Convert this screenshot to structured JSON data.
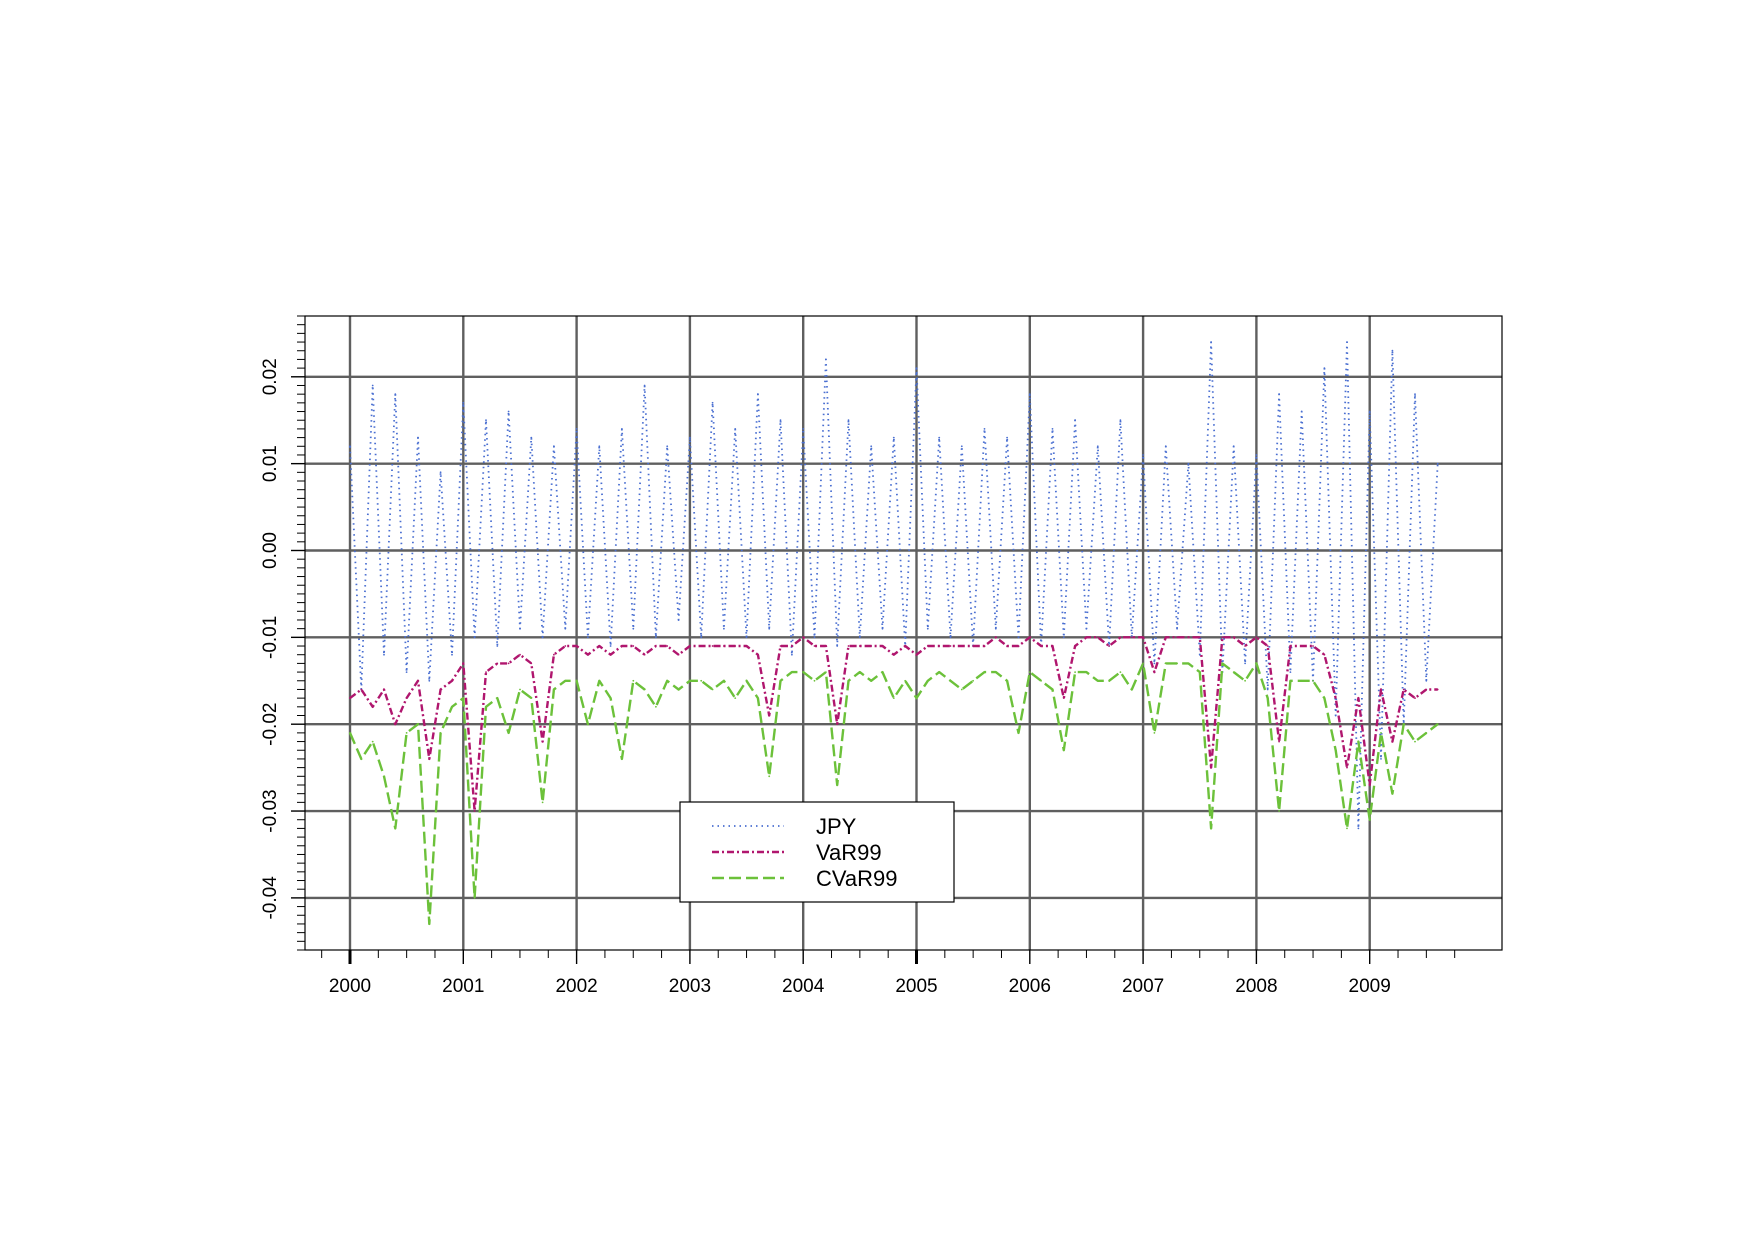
{
  "chart_data": {
    "type": "line",
    "title": "",
    "xlabel": "",
    "ylabel": "",
    "xlim": [
      2000,
      2009.95
    ],
    "ylim": [
      -0.046,
      0.027
    ],
    "grid": true,
    "legend_placement": "bottom-center",
    "x_ticks": [
      "2000",
      "2001",
      "2002",
      "2003",
      "2004",
      "2005",
      "2006",
      "2007",
      "2008",
      "2009"
    ],
    "y_ticks": [
      "0.02",
      "0.01",
      "0.00",
      "-0.01",
      "-0.02",
      "-0.03",
      "-0.04"
    ],
    "y_tick_values": [
      0.02,
      0.01,
      0.0,
      -0.01,
      -0.02,
      -0.03,
      -0.04
    ],
    "series": [
      {
        "name": "JPY",
        "color": "#4a6fd1",
        "style": "dotted",
        "x": [
          2000.0,
          2000.1,
          2000.2,
          2000.3,
          2000.4,
          2000.5,
          2000.6,
          2000.7,
          2000.8,
          2000.9,
          2001.0,
          2001.1,
          2001.2,
          2001.3,
          2001.4,
          2001.5,
          2001.6,
          2001.7,
          2001.8,
          2001.9,
          2002.0,
          2002.1,
          2002.2,
          2002.3,
          2002.4,
          2002.5,
          2002.6,
          2002.7,
          2002.8,
          2002.9,
          2003.0,
          2003.1,
          2003.2,
          2003.3,
          2003.4,
          2003.5,
          2003.6,
          2003.7,
          2003.8,
          2003.9,
          2004.0,
          2004.1,
          2004.2,
          2004.3,
          2004.4,
          2004.5,
          2004.6,
          2004.7,
          2004.8,
          2004.9,
          2005.0,
          2005.1,
          2005.2,
          2005.3,
          2005.4,
          2005.5,
          2005.6,
          2005.7,
          2005.8,
          2005.9,
          2006.0,
          2006.1,
          2006.2,
          2006.3,
          2006.4,
          2006.5,
          2006.6,
          2006.7,
          2006.8,
          2006.9,
          2007.0,
          2007.1,
          2007.2,
          2007.3,
          2007.4,
          2007.5,
          2007.6,
          2007.7,
          2007.8,
          2007.9,
          2008.0,
          2008.1,
          2008.2,
          2008.3,
          2008.4,
          2008.5,
          2008.6,
          2008.7,
          2008.8,
          2008.9,
          2009.0,
          2009.1,
          2009.2,
          2009.3,
          2009.4,
          2009.5,
          2009.6
        ],
        "values": [
          0.012,
          -0.016,
          0.019,
          -0.012,
          0.018,
          -0.014,
          0.013,
          -0.015,
          0.009,
          -0.012,
          0.017,
          -0.01,
          0.015,
          -0.011,
          0.016,
          -0.009,
          0.013,
          -0.01,
          0.012,
          -0.009,
          0.014,
          -0.01,
          0.012,
          -0.011,
          0.014,
          -0.009,
          0.019,
          -0.01,
          0.012,
          -0.008,
          0.013,
          -0.01,
          0.017,
          -0.009,
          0.014,
          -0.01,
          0.018,
          -0.009,
          0.015,
          -0.012,
          0.014,
          -0.01,
          0.022,
          -0.011,
          0.015,
          -0.01,
          0.012,
          -0.009,
          0.013,
          -0.011,
          0.021,
          -0.009,
          0.013,
          -0.01,
          0.012,
          -0.011,
          0.014,
          -0.009,
          0.013,
          -0.01,
          0.018,
          -0.011,
          0.014,
          -0.01,
          0.015,
          -0.009,
          0.012,
          -0.011,
          0.015,
          -0.01,
          0.011,
          -0.013,
          0.012,
          -0.009,
          0.01,
          -0.012,
          0.024,
          -0.014,
          0.012,
          -0.013,
          0.011,
          -0.016,
          0.018,
          -0.014,
          0.016,
          -0.015,
          0.021,
          -0.019,
          0.024,
          -0.032,
          0.016,
          -0.024,
          0.023,
          -0.02,
          0.018,
          -0.015,
          0.01
        ]
      },
      {
        "name": "VaR99",
        "color": "#b0166e",
        "style": "dashdot",
        "x": [
          2000.0,
          2000.1,
          2000.2,
          2000.3,
          2000.4,
          2000.5,
          2000.6,
          2000.7,
          2000.8,
          2000.9,
          2001.0,
          2001.1,
          2001.2,
          2001.3,
          2001.4,
          2001.5,
          2001.6,
          2001.7,
          2001.8,
          2001.9,
          2002.0,
          2002.1,
          2002.2,
          2002.3,
          2002.4,
          2002.5,
          2002.6,
          2002.7,
          2002.8,
          2002.9,
          2003.0,
          2003.1,
          2003.2,
          2003.3,
          2003.4,
          2003.5,
          2003.6,
          2003.7,
          2003.8,
          2003.9,
          2004.0,
          2004.1,
          2004.2,
          2004.3,
          2004.4,
          2004.5,
          2004.6,
          2004.7,
          2004.8,
          2004.9,
          2005.0,
          2005.1,
          2005.2,
          2005.3,
          2005.4,
          2005.5,
          2005.6,
          2005.7,
          2005.8,
          2005.9,
          2006.0,
          2006.1,
          2006.2,
          2006.3,
          2006.4,
          2006.5,
          2006.6,
          2006.7,
          2006.8,
          2006.9,
          2007.0,
          2007.1,
          2007.2,
          2007.3,
          2007.4,
          2007.5,
          2007.6,
          2007.7,
          2007.8,
          2007.9,
          2008.0,
          2008.1,
          2008.2,
          2008.3,
          2008.4,
          2008.5,
          2008.6,
          2008.7,
          2008.8,
          2008.9,
          2009.0,
          2009.1,
          2009.2,
          2009.3,
          2009.4,
          2009.5,
          2009.6
        ],
        "values": [
          -0.017,
          -0.016,
          -0.018,
          -0.016,
          -0.02,
          -0.017,
          -0.015,
          -0.024,
          -0.016,
          -0.015,
          -0.013,
          -0.03,
          -0.014,
          -0.013,
          -0.013,
          -0.012,
          -0.013,
          -0.022,
          -0.012,
          -0.011,
          -0.011,
          -0.012,
          -0.011,
          -0.012,
          -0.011,
          -0.011,
          -0.012,
          -0.011,
          -0.011,
          -0.012,
          -0.011,
          -0.011,
          -0.011,
          -0.011,
          -0.011,
          -0.011,
          -0.012,
          -0.019,
          -0.011,
          -0.011,
          -0.01,
          -0.011,
          -0.011,
          -0.02,
          -0.011,
          -0.011,
          -0.011,
          -0.011,
          -0.012,
          -0.011,
          -0.012,
          -0.011,
          -0.011,
          -0.011,
          -0.011,
          -0.011,
          -0.011,
          -0.01,
          -0.011,
          -0.011,
          -0.01,
          -0.011,
          -0.011,
          -0.017,
          -0.011,
          -0.01,
          -0.01,
          -0.011,
          -0.01,
          -0.01,
          -0.01,
          -0.014,
          -0.01,
          -0.01,
          -0.01,
          -0.01,
          -0.025,
          -0.01,
          -0.01,
          -0.011,
          -0.01,
          -0.011,
          -0.022,
          -0.011,
          -0.011,
          -0.011,
          -0.012,
          -0.017,
          -0.025,
          -0.017,
          -0.027,
          -0.016,
          -0.022,
          -0.016,
          -0.017,
          -0.016,
          -0.016
        ]
      },
      {
        "name": "CVaR99",
        "color": "#6cc13a",
        "style": "dashed",
        "x": [
          2000.0,
          2000.1,
          2000.2,
          2000.3,
          2000.4,
          2000.5,
          2000.6,
          2000.7,
          2000.8,
          2000.9,
          2001.0,
          2001.1,
          2001.2,
          2001.3,
          2001.4,
          2001.5,
          2001.6,
          2001.7,
          2001.8,
          2001.9,
          2002.0,
          2002.1,
          2002.2,
          2002.3,
          2002.4,
          2002.5,
          2002.6,
          2002.7,
          2002.8,
          2002.9,
          2003.0,
          2003.1,
          2003.2,
          2003.3,
          2003.4,
          2003.5,
          2003.6,
          2003.7,
          2003.8,
          2003.9,
          2004.0,
          2004.1,
          2004.2,
          2004.3,
          2004.4,
          2004.5,
          2004.6,
          2004.7,
          2004.8,
          2004.9,
          2005.0,
          2005.1,
          2005.2,
          2005.3,
          2005.4,
          2005.5,
          2005.6,
          2005.7,
          2005.8,
          2005.9,
          2006.0,
          2006.1,
          2006.2,
          2006.3,
          2006.4,
          2006.5,
          2006.6,
          2006.7,
          2006.8,
          2006.9,
          2007.0,
          2007.1,
          2007.2,
          2007.3,
          2007.4,
          2007.5,
          2007.6,
          2007.7,
          2007.8,
          2007.9,
          2008.0,
          2008.1,
          2008.2,
          2008.3,
          2008.4,
          2008.5,
          2008.6,
          2008.7,
          2008.8,
          2008.9,
          2009.0,
          2009.1,
          2009.2,
          2009.3,
          2009.4,
          2009.5,
          2009.6
        ],
        "values": [
          -0.021,
          -0.024,
          -0.022,
          -0.026,
          -0.032,
          -0.021,
          -0.02,
          -0.043,
          -0.021,
          -0.018,
          -0.017,
          -0.04,
          -0.018,
          -0.017,
          -0.021,
          -0.016,
          -0.017,
          -0.029,
          -0.016,
          -0.015,
          -0.015,
          -0.02,
          -0.015,
          -0.017,
          -0.024,
          -0.015,
          -0.016,
          -0.018,
          -0.015,
          -0.016,
          -0.015,
          -0.015,
          -0.016,
          -0.015,
          -0.017,
          -0.015,
          -0.017,
          -0.026,
          -0.015,
          -0.014,
          -0.014,
          -0.015,
          -0.014,
          -0.027,
          -0.015,
          -0.014,
          -0.015,
          -0.014,
          -0.017,
          -0.015,
          -0.017,
          -0.015,
          -0.014,
          -0.015,
          -0.016,
          -0.015,
          -0.014,
          -0.014,
          -0.015,
          -0.021,
          -0.014,
          -0.015,
          -0.016,
          -0.023,
          -0.014,
          -0.014,
          -0.015,
          -0.015,
          -0.014,
          -0.016,
          -0.013,
          -0.021,
          -0.013,
          -0.013,
          -0.013,
          -0.014,
          -0.032,
          -0.013,
          -0.014,
          -0.015,
          -0.013,
          -0.017,
          -0.03,
          -0.015,
          -0.015,
          -0.015,
          -0.017,
          -0.023,
          -0.032,
          -0.022,
          -0.031,
          -0.021,
          -0.028,
          -0.02,
          -0.022,
          -0.021,
          -0.02
        ]
      }
    ]
  }
}
